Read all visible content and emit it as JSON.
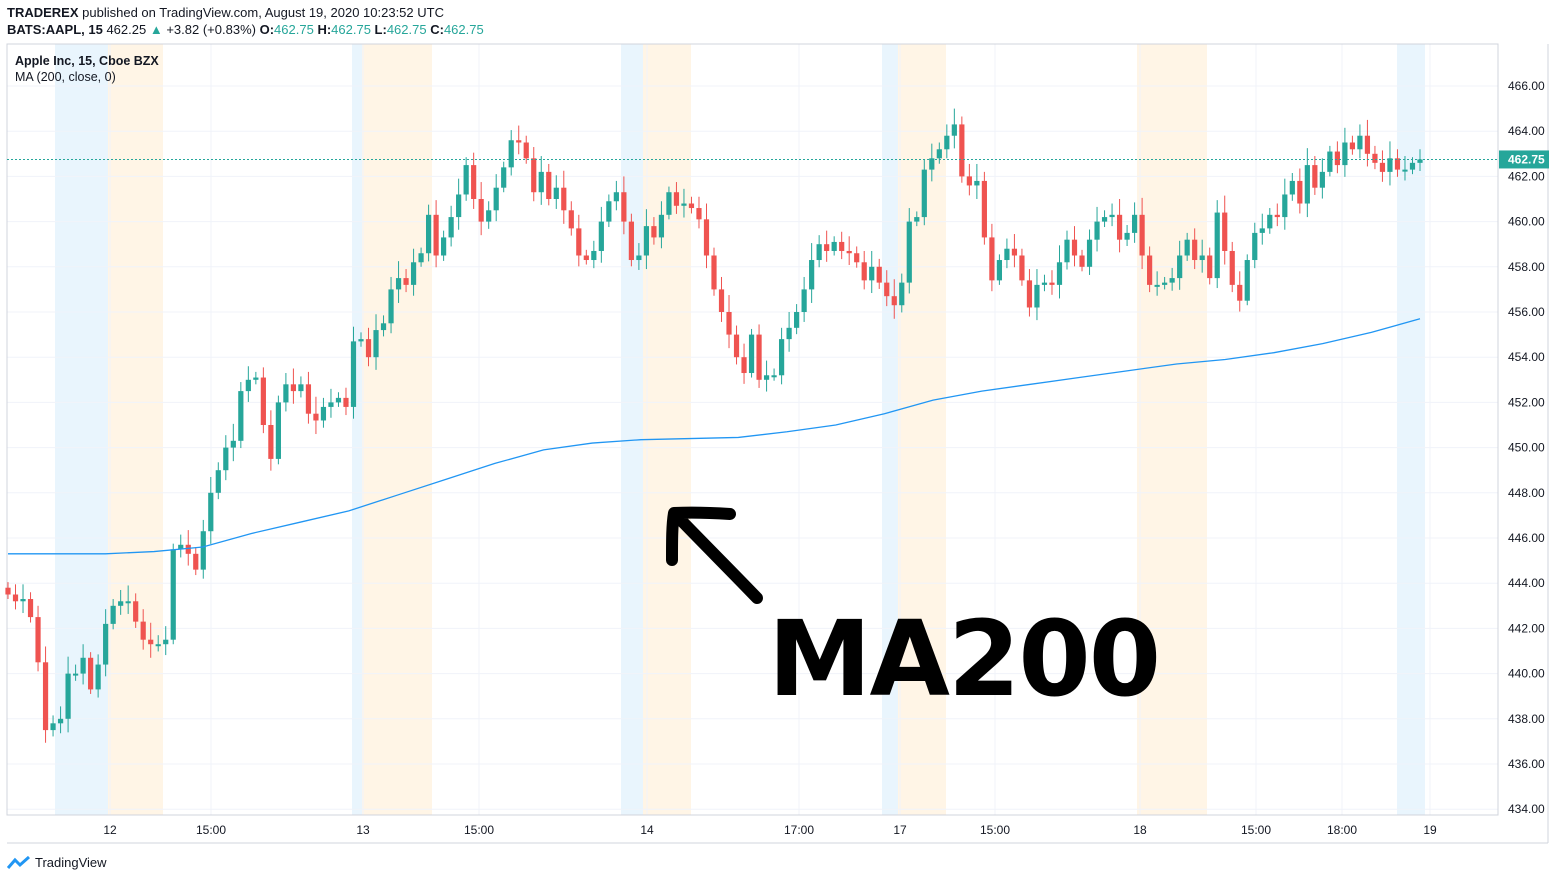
{
  "header": {
    "author": "TRADEREX",
    "published": "published on TradingView.com, August 19, 2020 10:23:52 UTC",
    "symbol": "BATS:AAPL, 15",
    "last": "462.25",
    "change": "+3.82 (+0.83%)",
    "o_label": "O:",
    "o": "462.75",
    "h_label": "H:",
    "h": "462.75",
    "l_label": "L:",
    "l": "462.75",
    "c_label": "C:",
    "c": "462.75"
  },
  "legend": {
    "title": "Apple Inc, 15, Cboe BZX",
    "indicator": "MA (200, close, 0)"
  },
  "annotation": {
    "text": "MA200",
    "icon": "hand-drawn-arrow-up-left"
  },
  "footer": {
    "brand": "TradingView",
    "icon": "tradingview-logo"
  },
  "colors": {
    "up": "#26a69a",
    "down": "#ef5350",
    "ma": "#2196f3",
    "premarket": "#e3f2fd",
    "postmarket": "#fff3e0"
  },
  "chart_data": {
    "type": "candlestick",
    "interval": "15",
    "ylim": [
      433.5,
      467
    ],
    "y_ticks": [
      "434.00",
      "436.00",
      "438.00",
      "440.00",
      "442.00",
      "444.00",
      "446.00",
      "448.00",
      "450.00",
      "452.00",
      "454.00",
      "456.00",
      "458.00",
      "460.00",
      "462.00",
      "464.00",
      "466.00"
    ],
    "x_ticks": [
      "12",
      "15:00",
      "13",
      "15:00",
      "14",
      "17:00",
      "17",
      "15:00",
      "18",
      "15:00",
      "18:00",
      "19"
    ],
    "last_price_label": "462.75",
    "first_open": 443.8,
    "closes": [
      443.5,
      443.2,
      443.3,
      442.5,
      440.5,
      437.5,
      437.8,
      438,
      440,
      440,
      440.7,
      439.3,
      440.4,
      442.2,
      443,
      443.2,
      443.2,
      442.3,
      441.5,
      441.3,
      441.3,
      441.5,
      445.5,
      445.7,
      445.3,
      444.6,
      446.3,
      448,
      449,
      450,
      450.3,
      452.5,
      453,
      453.1,
      451,
      449.5,
      452,
      452.8,
      452.5,
      452.8,
      451.5,
      451.2,
      451.8,
      452,
      452.2,
      451.8,
      454.7,
      454.8,
      454,
      455.2,
      455.5,
      457,
      457.5,
      457.2,
      458.2,
      458.6,
      460.3,
      458.5,
      459.3,
      460.2,
      461.2,
      462.5,
      461,
      460,
      460.5,
      461.5,
      462.4,
      463.6,
      463.5,
      462.8,
      461.3,
      462.2,
      461,
      461.5,
      460.5,
      459.7,
      458.5,
      458.3,
      458.7,
      460,
      460.9,
      461.3,
      460,
      458.3,
      458.5,
      459.8,
      459.3,
      460.3,
      461.3,
      460.7,
      460.8,
      460.6,
      460.1,
      458.5,
      457,
      456,
      455,
      454,
      453.3,
      455,
      453,
      453.2,
      453.2,
      454.8,
      455.3,
      456,
      457,
      458.3,
      459,
      458.7,
      459.1,
      458.7,
      458.6,
      458.2,
      457.4,
      458,
      457.3,
      456.7,
      456.3,
      457.3,
      460,
      460.2,
      462.3,
      462.8,
      463.2,
      463.8,
      464.3,
      462,
      461.6,
      461.8,
      459.3,
      457.4,
      458.3,
      458.8,
      458.5,
      457.4,
      456.2,
      457.2,
      457.3,
      457.2,
      458.2,
      459.2,
      458.5,
      458,
      459.2,
      460,
      460.2,
      460.3,
      459.2,
      459.5,
      460.3,
      458.5,
      457.2,
      457.2,
      457.3,
      457.5,
      458.5,
      459.2,
      458.3,
      458.5,
      457.5,
      460.4,
      458.7,
      457.2,
      456.5,
      458.3,
      459.5,
      459.7,
      460.3,
      460.2,
      461.2,
      461.8,
      460.8,
      462.5,
      461.5,
      462.2,
      463.1,
      462.5,
      463.5,
      463.2,
      463.8,
      463,
      462.6,
      462.2,
      462.8,
      462.3,
      462.3,
      462.6,
      462.75
    ],
    "ma_name": "MA (200, close, 0)",
    "ma_values": [
      445.3,
      445.3,
      445.3,
      445.4,
      445.6,
      446.2,
      446.7,
      447.2,
      447.9,
      448.6,
      449.3,
      449.9,
      450.2,
      450.35,
      450.4,
      450.45,
      450.7,
      451.0,
      451.5,
      452.1,
      452.5,
      452.8,
      453.1,
      453.4,
      453.7,
      453.9,
      454.2,
      454.6,
      455.1,
      455.7
    ]
  }
}
